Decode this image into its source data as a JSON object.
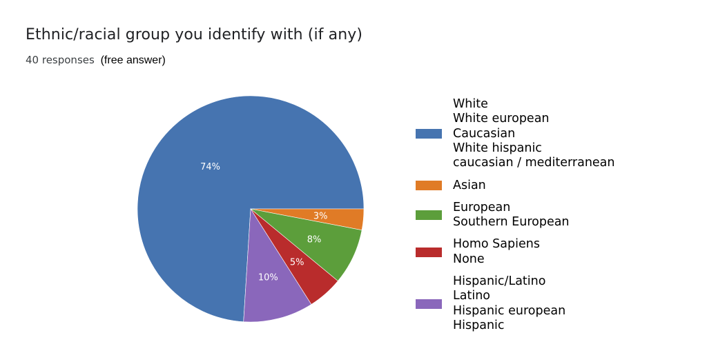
{
  "title": "Ethnic/racial group you identify with (if any)",
  "subtitle": {
    "count": "40 responses",
    "note": "(free answer)"
  },
  "colors": {
    "blue": "#4674b0",
    "orange": "#e07b26",
    "green": "#5c9e3b",
    "red": "#b92c2c",
    "purple": "#8a67bb"
  },
  "chart_data": {
    "type": "pie",
    "title": "Ethnic/racial group you identify with (if any)",
    "total_responses": 40,
    "slices": [
      {
        "label_lines": [
          "White",
          "White european",
          "Caucasian",
          "White hispanic",
          "caucasian / mediterranean"
        ],
        "value": 74,
        "label": "74%",
        "color": "#4674b0"
      },
      {
        "label_lines": [
          "Asian"
        ],
        "value": 3,
        "label": "3%",
        "color": "#e07b26"
      },
      {
        "label_lines": [
          "European",
          "Southern European"
        ],
        "value": 8,
        "label": "8%",
        "color": "#5c9e3b"
      },
      {
        "label_lines": [
          "Homo Sapiens",
          "None"
        ],
        "value": 5,
        "label": "5%",
        "color": "#b92c2c"
      },
      {
        "label_lines": [
          "Hispanic/Latino",
          "Latino",
          "Hispanic european",
          "Hispanic"
        ],
        "value": 10,
        "label": "10%",
        "color": "#8a67bb"
      }
    ],
    "legend_position": "right"
  }
}
